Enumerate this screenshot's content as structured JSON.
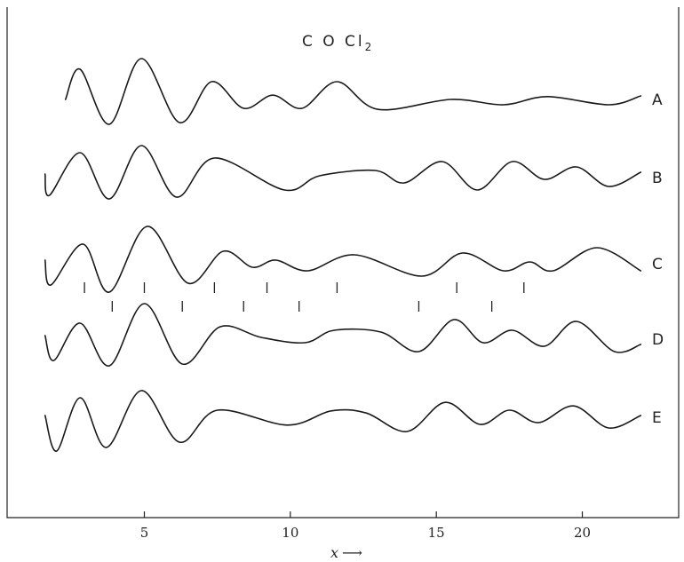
{
  "chart_data": {
    "type": "line",
    "title": "C O Cl",
    "title_subscript": "2",
    "xlabel": "x",
    "xlabel_arrow": "⟶",
    "xlim": [
      0.3,
      23.3
    ],
    "ylim": [
      -1,
      1
    ],
    "grid": false,
    "x_ticks": [
      5,
      10,
      15,
      20
    ],
    "x_tick_labels": [
      "5",
      "10",
      "15",
      "20"
    ],
    "series": [
      {
        "name": "A",
        "x_start": 2.3,
        "x_end": 22.0,
        "points": [
          [
            2.3,
            0.0
          ],
          [
            2.8,
            0.85
          ],
          [
            3.8,
            -0.7
          ],
          [
            4.9,
            1.15
          ],
          [
            6.2,
            -0.65
          ],
          [
            7.3,
            0.5
          ],
          [
            8.4,
            -0.25
          ],
          [
            9.4,
            0.12
          ],
          [
            10.4,
            -0.25
          ],
          [
            11.6,
            0.5
          ],
          [
            13.0,
            -0.28
          ],
          [
            15.5,
            0.0
          ],
          [
            17.3,
            -0.15
          ],
          [
            18.8,
            0.08
          ],
          [
            20.9,
            -0.15
          ],
          [
            22.0,
            0.1
          ]
        ]
      },
      {
        "name": "B",
        "x_start": 1.6,
        "x_end": 22.0,
        "points": [
          [
            1.6,
            0.1
          ],
          [
            1.75,
            -0.5
          ],
          [
            2.8,
            0.7
          ],
          [
            3.8,
            -0.6
          ],
          [
            4.9,
            0.9
          ],
          [
            6.1,
            -0.55
          ],
          [
            7.4,
            0.55
          ],
          [
            9.8,
            -0.35
          ],
          [
            11.0,
            0.05
          ],
          [
            12.9,
            0.2
          ],
          [
            13.9,
            -0.15
          ],
          [
            15.2,
            0.45
          ],
          [
            16.4,
            -0.35
          ],
          [
            17.6,
            0.45
          ],
          [
            18.7,
            -0.05
          ],
          [
            19.8,
            0.3
          ],
          [
            20.9,
            -0.25
          ],
          [
            22.0,
            0.15
          ]
        ]
      },
      {
        "name": "C",
        "x_start": 1.6,
        "x_end": 22.0,
        "points": [
          [
            1.6,
            0.1
          ],
          [
            1.8,
            -0.6
          ],
          [
            2.9,
            0.55
          ],
          [
            3.8,
            -0.8
          ],
          [
            5.1,
            1.05
          ],
          [
            6.5,
            -0.55
          ],
          [
            7.7,
            0.35
          ],
          [
            8.7,
            -0.1
          ],
          [
            9.5,
            0.1
          ],
          [
            10.6,
            -0.2
          ],
          [
            12.2,
            0.25
          ],
          [
            14.5,
            -0.35
          ],
          [
            15.9,
            0.3
          ],
          [
            17.3,
            -0.2
          ],
          [
            18.2,
            0.05
          ],
          [
            19.0,
            -0.2
          ],
          [
            20.5,
            0.45
          ],
          [
            22.0,
            -0.2
          ]
        ]
      },
      {
        "name": "D",
        "x_start": 1.6,
        "x_end": 22.0,
        "points": [
          [
            1.6,
            0.1
          ],
          [
            1.9,
            -0.6
          ],
          [
            2.8,
            0.45
          ],
          [
            3.8,
            -0.75
          ],
          [
            5.0,
            1.0
          ],
          [
            6.3,
            -0.7
          ],
          [
            7.6,
            0.35
          ],
          [
            9.0,
            0.05
          ],
          [
            10.5,
            -0.1
          ],
          [
            11.5,
            0.25
          ],
          [
            13.1,
            0.2
          ],
          [
            14.4,
            -0.35
          ],
          [
            15.6,
            0.55
          ],
          [
            16.6,
            -0.1
          ],
          [
            17.6,
            0.25
          ],
          [
            18.7,
            -0.2
          ],
          [
            19.8,
            0.5
          ],
          [
            21.1,
            -0.35
          ],
          [
            22.0,
            -0.15
          ]
        ]
      },
      {
        "name": "E",
        "x_start": 1.6,
        "x_end": 22.0,
        "points": [
          [
            1.6,
            0.05
          ],
          [
            2.0,
            -0.95
          ],
          [
            2.8,
            0.55
          ],
          [
            3.7,
            -0.85
          ],
          [
            4.9,
            0.75
          ],
          [
            6.2,
            -0.7
          ],
          [
            7.5,
            0.2
          ],
          [
            9.9,
            -0.22
          ],
          [
            11.4,
            0.18
          ],
          [
            12.6,
            0.12
          ],
          [
            14.0,
            -0.4
          ],
          [
            15.3,
            0.42
          ],
          [
            16.5,
            -0.2
          ],
          [
            17.5,
            0.2
          ],
          [
            18.5,
            -0.15
          ],
          [
            19.7,
            0.32
          ],
          [
            20.9,
            -0.3
          ],
          [
            22.0,
            0.05
          ]
        ]
      }
    ],
    "markers_upper": [
      2.95,
      5.0,
      7.4,
      9.2,
      11.6,
      15.7,
      18.0
    ],
    "markers_lower": [
      3.9,
      6.3,
      8.4,
      10.3,
      14.4,
      16.9
    ]
  }
}
